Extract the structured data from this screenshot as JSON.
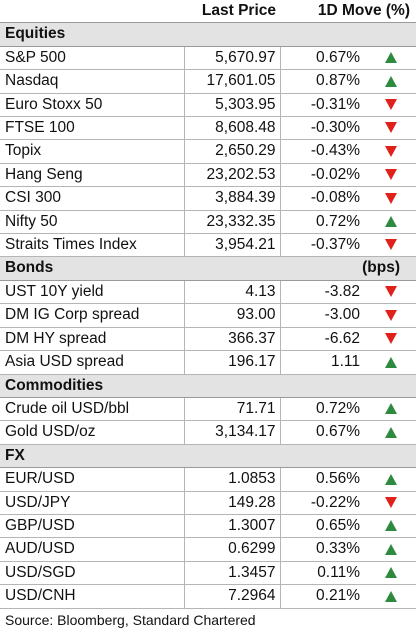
{
  "header": {
    "col_price": "Last Price",
    "col_move": "1D Move (%)"
  },
  "sections": [
    {
      "title": "Equities",
      "unit": "",
      "rows": [
        {
          "name": "S&P 500",
          "price": "5,670.97",
          "move": "0.67%",
          "dir": "up"
        },
        {
          "name": "Nasdaq",
          "price": "17,601.05",
          "move": "0.87%",
          "dir": "up"
        },
        {
          "name": "Euro Stoxx 50",
          "price": "5,303.95",
          "move": "-0.31%",
          "dir": "down"
        },
        {
          "name": "FTSE 100",
          "price": "8,608.48",
          "move": "-0.30%",
          "dir": "down"
        },
        {
          "name": "Topix",
          "price": "2,650.29",
          "move": "-0.43%",
          "dir": "down"
        },
        {
          "name": "Hang Seng",
          "price": "23,202.53",
          "move": "-0.02%",
          "dir": "down"
        },
        {
          "name": "CSI 300",
          "price": "3,884.39",
          "move": "-0.08%",
          "dir": "down"
        },
        {
          "name": "Nifty 50",
          "price": "23,332.35",
          "move": "0.72%",
          "dir": "up"
        },
        {
          "name": "Straits Times Index",
          "price": "3,954.21",
          "move": "-0.37%",
          "dir": "down"
        }
      ]
    },
    {
      "title": "Bonds",
      "unit": "(bps)",
      "rows": [
        {
          "name": "UST 10Y yield",
          "price": "4.13",
          "move": "-3.82",
          "dir": "down"
        },
        {
          "name": "DM IG Corp spread",
          "price": "93.00",
          "move": "-3.00",
          "dir": "down"
        },
        {
          "name": "DM HY spread",
          "price": "366.37",
          "move": "-6.62",
          "dir": "down"
        },
        {
          "name": "Asia USD spread",
          "price": "196.17",
          "move": "1.11",
          "dir": "up"
        }
      ]
    },
    {
      "title": "Commodities",
      "unit": "",
      "rows": [
        {
          "name": "Crude oil USD/bbl",
          "price": "71.71",
          "move": "0.72%",
          "dir": "up"
        },
        {
          "name": "Gold USD/oz",
          "price": "3,134.17",
          "move": "0.67%",
          "dir": "up"
        }
      ]
    },
    {
      "title": "FX",
      "unit": "",
      "rows": [
        {
          "name": "EUR/USD",
          "price": "1.0853",
          "move": "0.56%",
          "dir": "up"
        },
        {
          "name": "USD/JPY",
          "price": "149.28",
          "move": "-0.22%",
          "dir": "down"
        },
        {
          "name": "GBP/USD",
          "price": "1.3007",
          "move": "0.65%",
          "dir": "up"
        },
        {
          "name": "AUD/USD",
          "price": "0.6299",
          "move": "0.33%",
          "dir": "up"
        },
        {
          "name": "USD/SGD",
          "price": "1.3457",
          "move": "0.11%",
          "dir": "up"
        },
        {
          "name": "USD/CNH",
          "price": "7.2964",
          "move": "0.21%",
          "dir": "up"
        }
      ]
    }
  ],
  "source": "Source: Bloomberg, Standard Chartered",
  "colors": {
    "up": "#2d8a3e",
    "down": "#e0201b",
    "section_bg": "#e3e3e3"
  }
}
